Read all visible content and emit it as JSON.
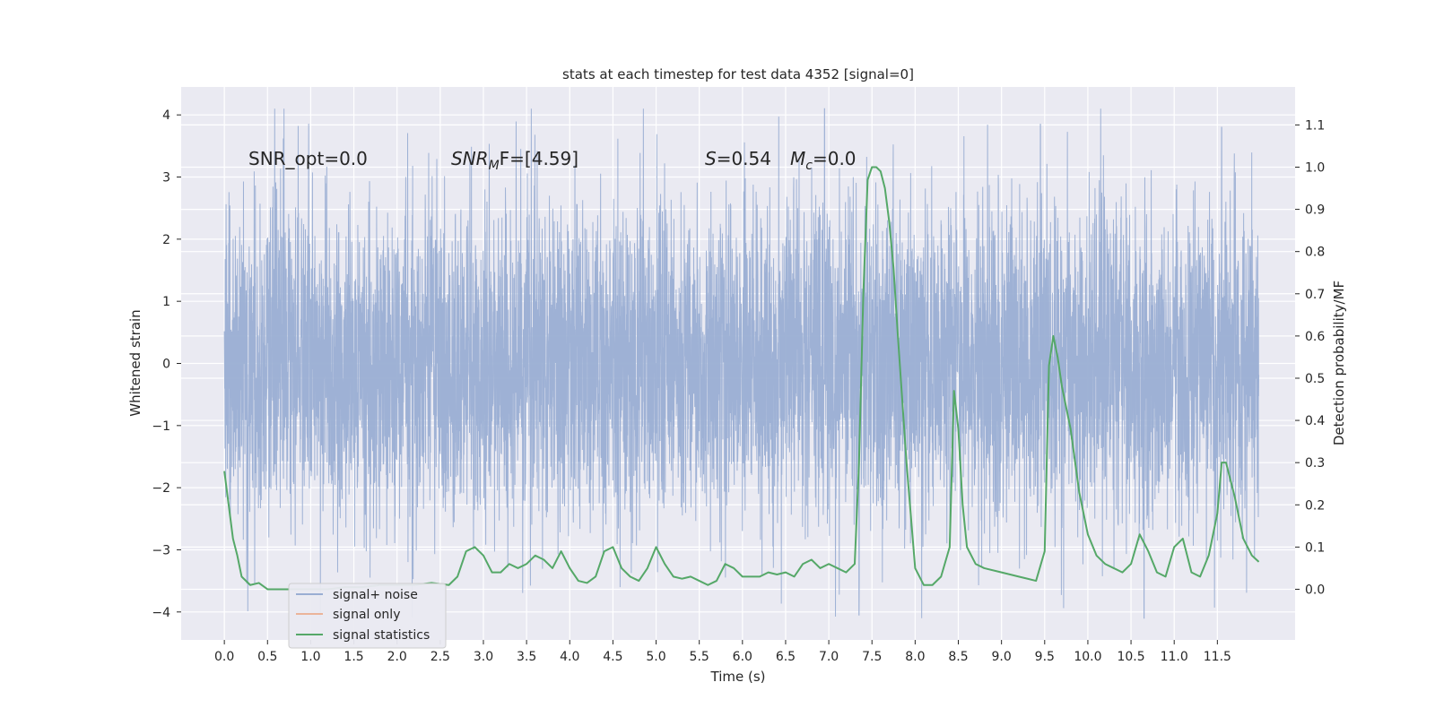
{
  "chart_data": {
    "type": "line",
    "title": "stats at each timestep for test data 4352 [signal=0]",
    "xlabel": "Time (s)",
    "ylabel": "Whitened strain",
    "y2label": "Detection probability/MF",
    "xlim": [
      -0.5,
      12.4
    ],
    "ylim": [
      -4.45,
      4.45
    ],
    "y2lim": [
      -0.12,
      1.19
    ],
    "x_ticks": [
      0.0,
      0.5,
      1.0,
      1.5,
      2.0,
      2.5,
      3.0,
      3.5,
      4.0,
      4.5,
      5.0,
      5.5,
      6.0,
      6.5,
      7.0,
      7.5,
      8.0,
      8.5,
      9.0,
      9.5,
      10.0,
      10.5,
      11.0,
      11.5
    ],
    "x_tick_labels": [
      "0.0",
      "0.5",
      "1.0",
      "1.5",
      "2.0",
      "2.5",
      "3.0",
      "3.5",
      "4.0",
      "4.5",
      "5.0",
      "5.5",
      "6.0",
      "6.5",
      "7.0",
      "7.5",
      "8.0",
      "8.5",
      "9.0",
      "9.5",
      "10.0",
      "10.5",
      "11.0",
      "11.5"
    ],
    "y_ticks": [
      -4,
      -3,
      -2,
      -1,
      0,
      1,
      2,
      3,
      4
    ],
    "y_tick_labels": [
      "−4",
      "−3",
      "−2",
      "−1",
      "0",
      "1",
      "2",
      "3",
      "4"
    ],
    "y2_ticks": [
      0.0,
      0.1,
      0.2,
      0.3,
      0.4,
      0.5,
      0.6,
      0.7,
      0.8,
      0.9,
      1.0,
      1.1
    ],
    "y2_tick_labels": [
      "0.0",
      "0.1",
      "0.2",
      "0.3",
      "0.4",
      "0.5",
      "0.6",
      "0.7",
      "0.8",
      "0.9",
      "1.0",
      "1.1"
    ],
    "grid": true,
    "legend_position": "lower-left",
    "annotations": {
      "snr_opt": "SNR_opt=0.0",
      "snr_mf_base": "SNR",
      "snr_mf_sub": "M",
      "snr_mf_rest": "F=[4.59]",
      "s_sym": "S",
      "s_val": "=0.54",
      "mc_sym": "M",
      "mc_sub": "c",
      "mc_val": "=0.0"
    },
    "series": [
      {
        "name": "signal+ noise",
        "color": "#9aaed3",
        "axis": "left",
        "description": "whitened strain noise, roughly Gaussian, approx ±1.3 core amplitude, extremes near ±4",
        "x_range": [
          0.0,
          11.98
        ],
        "core_amplitude": 1.3,
        "peak_times": [
          6.95,
          9.45,
          11.55,
          7.35,
          10.65
        ],
        "peak_values": [
          4.1,
          3.85,
          3.8,
          -4.05,
          -4.1
        ]
      },
      {
        "name": "signal only",
        "color": "#dd8452",
        "axis": "left",
        "x": [],
        "y": []
      },
      {
        "name": "signal statistics",
        "color": "#55a868",
        "axis": "right",
        "x": [
          0.0,
          0.05,
          0.1,
          0.15,
          0.2,
          0.3,
          0.4,
          0.5,
          0.6,
          0.8,
          1.0,
          1.2,
          1.4,
          1.6,
          1.8,
          2.0,
          2.2,
          2.4,
          2.6,
          2.7,
          2.8,
          2.9,
          3.0,
          3.1,
          3.2,
          3.3,
          3.4,
          3.5,
          3.6,
          3.7,
          3.8,
          3.9,
          4.0,
          4.1,
          4.2,
          4.3,
          4.4,
          4.5,
          4.6,
          4.7,
          4.8,
          4.9,
          5.0,
          5.1,
          5.2,
          5.3,
          5.4,
          5.5,
          5.6,
          5.7,
          5.8,
          5.9,
          6.0,
          6.1,
          6.2,
          6.3,
          6.4,
          6.5,
          6.6,
          6.7,
          6.8,
          6.9,
          7.0,
          7.1,
          7.2,
          7.3,
          7.35,
          7.4,
          7.45,
          7.5,
          7.55,
          7.6,
          7.65,
          7.7,
          7.75,
          7.8,
          7.9,
          8.0,
          8.1,
          8.2,
          8.3,
          8.4,
          8.45,
          8.5,
          8.55,
          8.6,
          8.7,
          8.8,
          9.0,
          9.2,
          9.4,
          9.5,
          9.55,
          9.6,
          9.65,
          9.7,
          9.8,
          9.9,
          10.0,
          10.1,
          10.2,
          10.3,
          10.4,
          10.5,
          10.6,
          10.7,
          10.8,
          10.9,
          11.0,
          11.1,
          11.2,
          11.3,
          11.4,
          11.5,
          11.55,
          11.6,
          11.7,
          11.8,
          11.9,
          11.98
        ],
        "y": [
          0.28,
          0.2,
          0.12,
          0.08,
          0.03,
          0.01,
          0.015,
          0.0,
          0.0,
          0.0,
          0.0,
          0.0,
          0.005,
          0.005,
          0.01,
          0.01,
          0.01,
          0.015,
          0.01,
          0.03,
          0.09,
          0.1,
          0.08,
          0.04,
          0.04,
          0.06,
          0.05,
          0.06,
          0.08,
          0.07,
          0.05,
          0.09,
          0.05,
          0.02,
          0.015,
          0.03,
          0.09,
          0.1,
          0.05,
          0.03,
          0.02,
          0.05,
          0.1,
          0.06,
          0.03,
          0.025,
          0.03,
          0.02,
          0.01,
          0.02,
          0.06,
          0.05,
          0.03,
          0.03,
          0.03,
          0.04,
          0.035,
          0.04,
          0.03,
          0.06,
          0.07,
          0.05,
          0.06,
          0.05,
          0.04,
          0.06,
          0.3,
          0.7,
          0.97,
          1.0,
          1.0,
          0.99,
          0.95,
          0.87,
          0.76,
          0.6,
          0.3,
          0.05,
          0.01,
          0.01,
          0.03,
          0.1,
          0.47,
          0.38,
          0.2,
          0.1,
          0.06,
          0.05,
          0.04,
          0.03,
          0.02,
          0.09,
          0.53,
          0.6,
          0.55,
          0.48,
          0.38,
          0.23,
          0.13,
          0.08,
          0.06,
          0.05,
          0.04,
          0.06,
          0.13,
          0.09,
          0.04,
          0.03,
          0.1,
          0.12,
          0.04,
          0.03,
          0.08,
          0.18,
          0.3,
          0.3,
          0.22,
          0.12,
          0.08,
          0.065
        ]
      }
    ]
  }
}
